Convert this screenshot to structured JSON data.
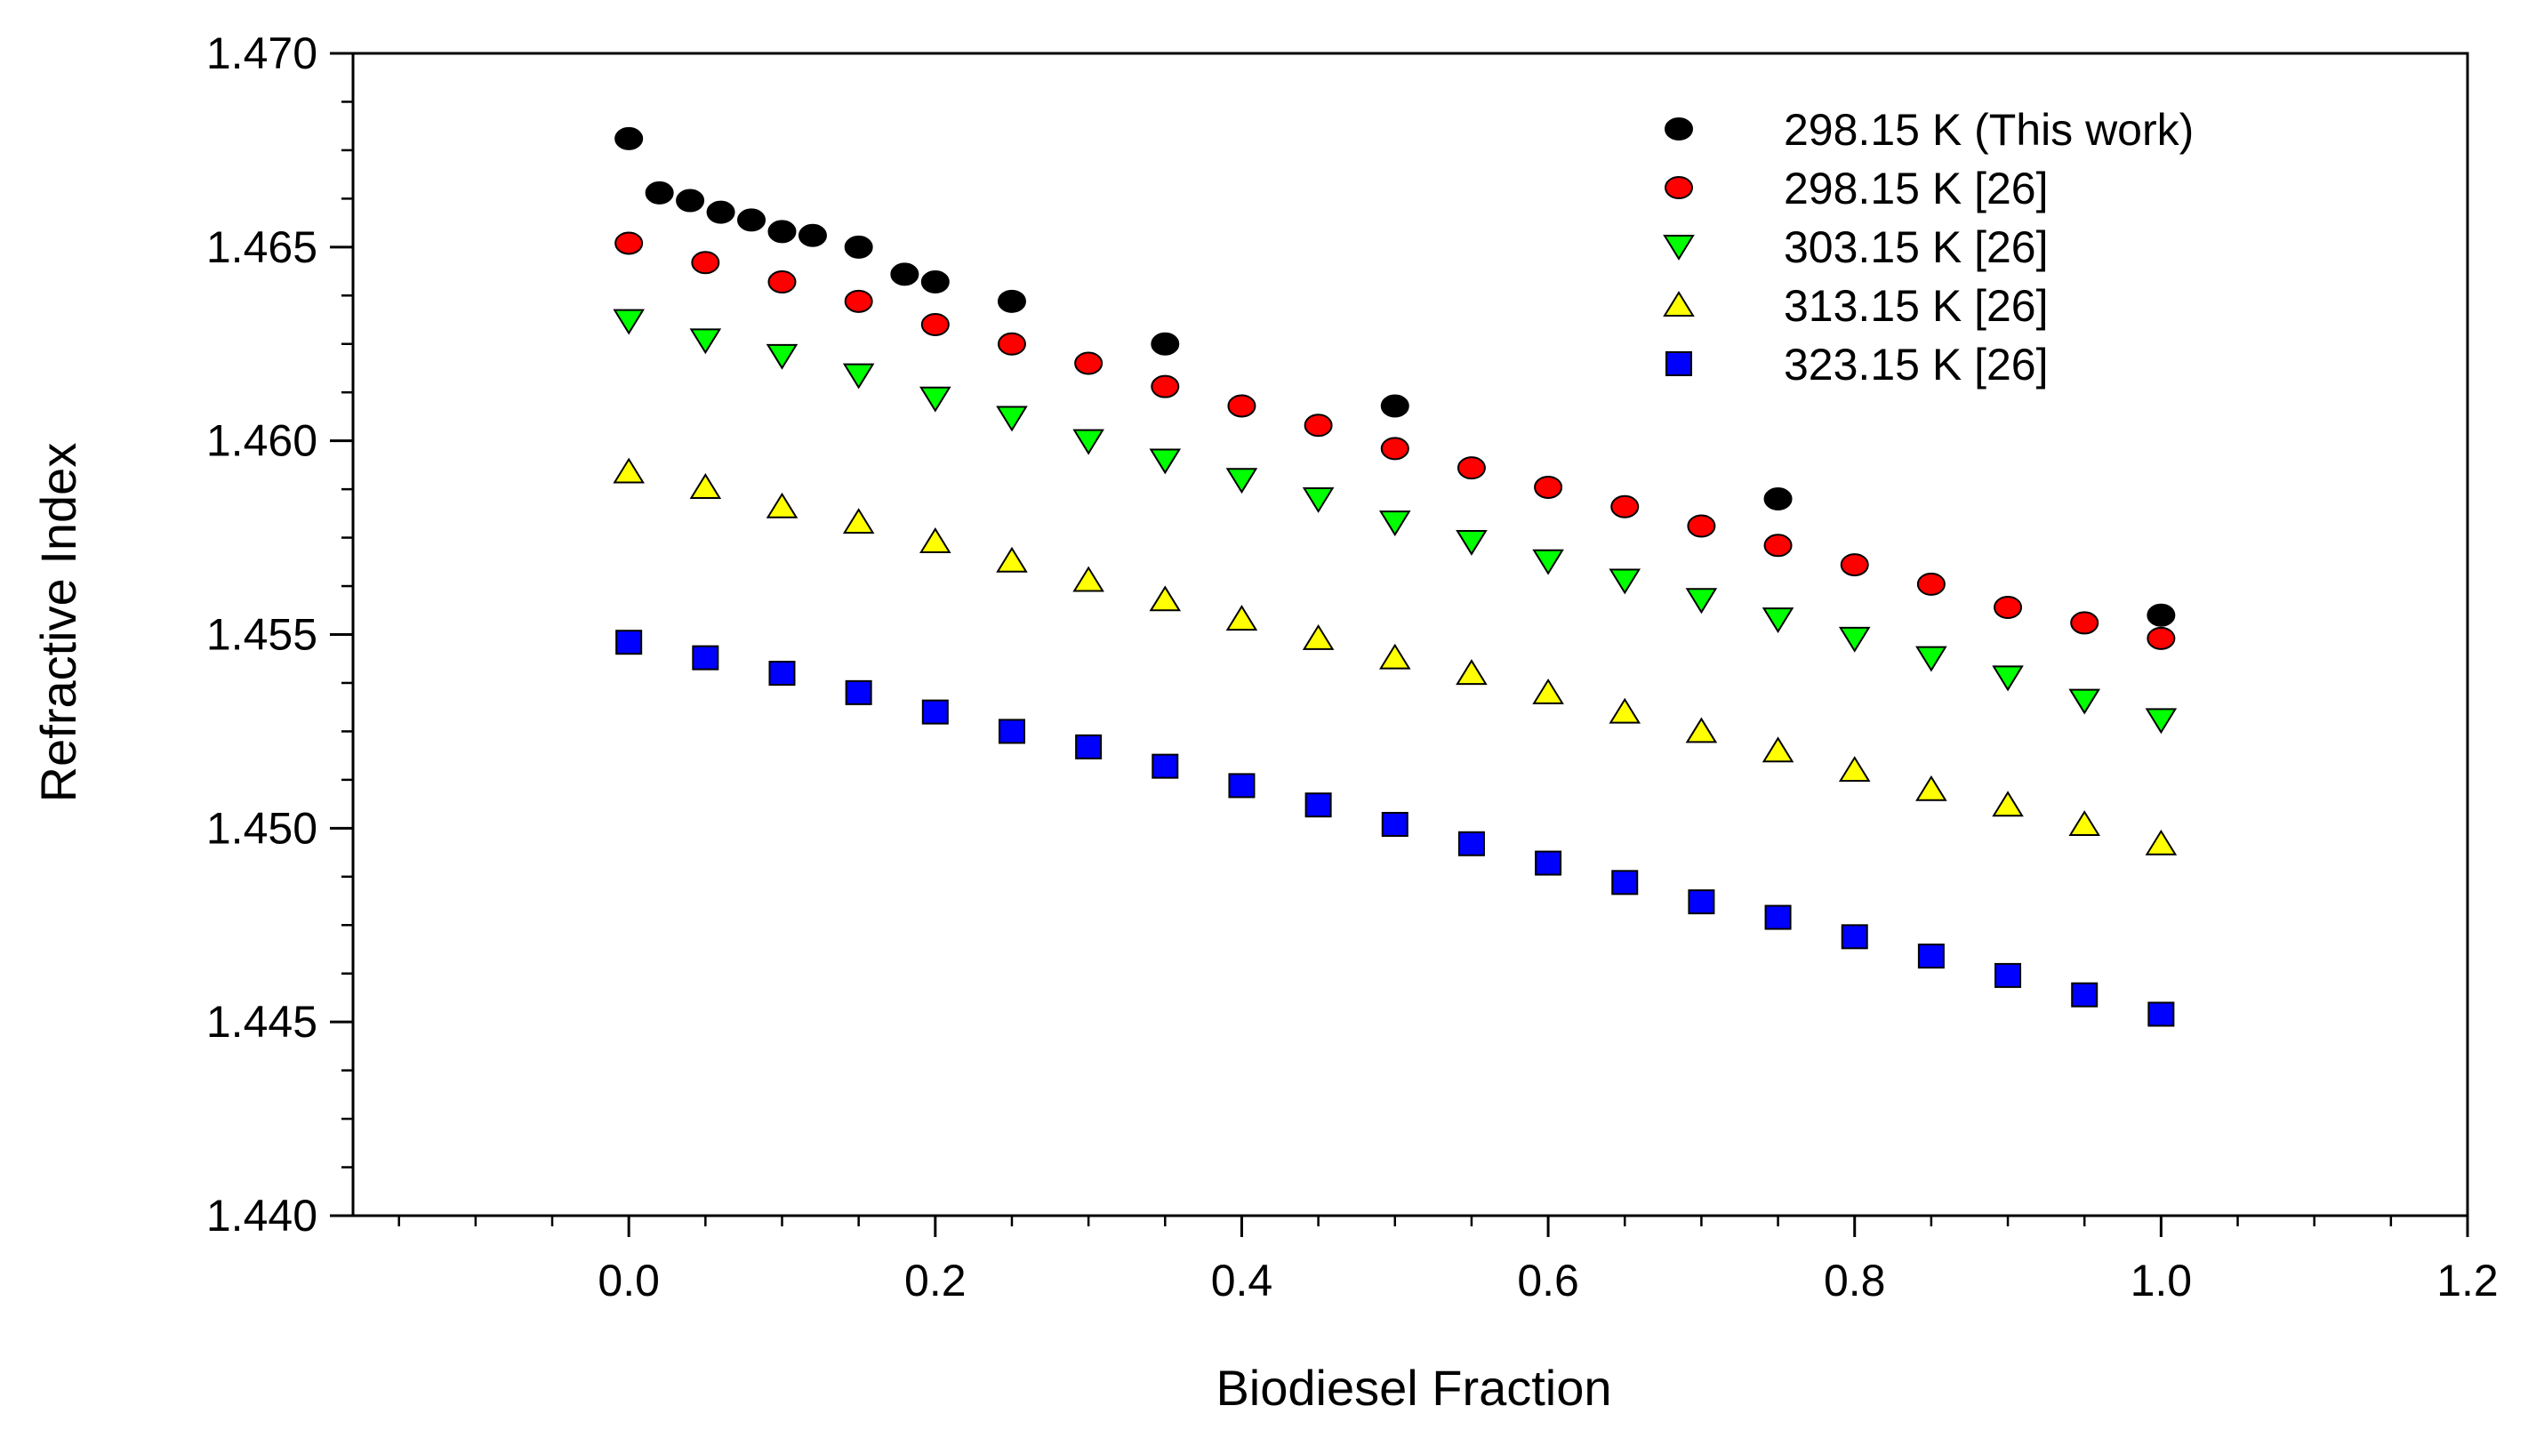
{
  "chart_data": {
    "type": "scatter",
    "title": "",
    "xlabel": "Biodiesel Fraction",
    "ylabel": "Refractive Index",
    "xlim": [
      -0.18,
      1.2
    ],
    "ylim": [
      1.44,
      1.47
    ],
    "xticks": [
      {
        "value": 0.0,
        "label": "0.0"
      },
      {
        "value": 0.2,
        "label": "0.2"
      },
      {
        "value": 0.4,
        "label": "0.4"
      },
      {
        "value": 0.6,
        "label": "0.6"
      },
      {
        "value": 0.8,
        "label": "0.8"
      },
      {
        "value": 1.0,
        "label": "1.0"
      },
      {
        "value": 1.2,
        "label": "1.2"
      }
    ],
    "yticks": [
      {
        "value": 1.44,
        "label": "1.440"
      },
      {
        "value": 1.445,
        "label": "1.445"
      },
      {
        "value": 1.45,
        "label": "1.450"
      },
      {
        "value": 1.455,
        "label": "1.455"
      },
      {
        "value": 1.46,
        "label": "1.460"
      },
      {
        "value": 1.465,
        "label": "1.465"
      },
      {
        "value": 1.47,
        "label": "1.470"
      }
    ],
    "grid": false,
    "legend_position": "top-right",
    "series": [
      {
        "name": "298.15 K (This work)",
        "marker": "circle",
        "color": "#000000",
        "points": [
          [
            0.0,
            1.4678
          ],
          [
            0.02,
            1.4664
          ],
          [
            0.04,
            1.4662
          ],
          [
            0.06,
            1.4659
          ],
          [
            0.08,
            1.4657
          ],
          [
            0.1,
            1.4654
          ],
          [
            0.12,
            1.4653
          ],
          [
            0.15,
            1.465
          ],
          [
            0.18,
            1.4643
          ],
          [
            0.2,
            1.4641
          ],
          [
            0.25,
            1.4636
          ],
          [
            0.35,
            1.4625
          ],
          [
            0.5,
            1.4609
          ],
          [
            0.75,
            1.4585
          ],
          [
            1.0,
            1.4555
          ]
        ]
      },
      {
        "name": "298.15 K [26]",
        "marker": "circle",
        "color": "#ff0000",
        "points": [
          [
            0.0,
            1.4651
          ],
          [
            0.05,
            1.4646
          ],
          [
            0.1,
            1.4641
          ],
          [
            0.15,
            1.4636
          ],
          [
            0.2,
            1.463
          ],
          [
            0.25,
            1.4625
          ],
          [
            0.3,
            1.462
          ],
          [
            0.35,
            1.4614
          ],
          [
            0.4,
            1.4609
          ],
          [
            0.45,
            1.4604
          ],
          [
            0.5,
            1.4598
          ],
          [
            0.55,
            1.4593
          ],
          [
            0.6,
            1.4588
          ],
          [
            0.65,
            1.4583
          ],
          [
            0.7,
            1.4578
          ],
          [
            0.75,
            1.4573
          ],
          [
            0.8,
            1.4568
          ],
          [
            0.85,
            1.4563
          ],
          [
            0.9,
            1.4557
          ],
          [
            0.95,
            1.4553
          ],
          [
            1.0,
            1.4549
          ]
        ]
      },
      {
        "name": "303.15 K [26]",
        "marker": "triangle-down",
        "color": "#00ff00",
        "points": [
          [
            0.0,
            1.4631
          ],
          [
            0.05,
            1.4626
          ],
          [
            0.1,
            1.4622
          ],
          [
            0.15,
            1.4617
          ],
          [
            0.2,
            1.4611
          ],
          [
            0.25,
            1.4606
          ],
          [
            0.3,
            1.46
          ],
          [
            0.35,
            1.4595
          ],
          [
            0.4,
            1.459
          ],
          [
            0.45,
            1.4585
          ],
          [
            0.5,
            1.4579
          ],
          [
            0.55,
            1.4574
          ],
          [
            0.6,
            1.4569
          ],
          [
            0.65,
            1.4564
          ],
          [
            0.7,
            1.4559
          ],
          [
            0.75,
            1.4554
          ],
          [
            0.8,
            1.4549
          ],
          [
            0.85,
            1.4544
          ],
          [
            0.9,
            1.4539
          ],
          [
            0.95,
            1.4533
          ],
          [
            1.0,
            1.4528
          ]
        ]
      },
      {
        "name": "313.15 K [26]",
        "marker": "triangle-up",
        "color": "#ffff00",
        "points": [
          [
            0.0,
            1.4592
          ],
          [
            0.05,
            1.4588
          ],
          [
            0.1,
            1.4583
          ],
          [
            0.15,
            1.4579
          ],
          [
            0.2,
            1.4574
          ],
          [
            0.25,
            1.4569
          ],
          [
            0.3,
            1.4564
          ],
          [
            0.35,
            1.4559
          ],
          [
            0.4,
            1.4554
          ],
          [
            0.45,
            1.4549
          ],
          [
            0.5,
            1.4544
          ],
          [
            0.55,
            1.454
          ],
          [
            0.6,
            1.4535
          ],
          [
            0.65,
            1.453
          ],
          [
            0.7,
            1.4525
          ],
          [
            0.75,
            1.452
          ],
          [
            0.8,
            1.4515
          ],
          [
            0.85,
            1.451
          ],
          [
            0.9,
            1.4506
          ],
          [
            0.95,
            1.4501
          ],
          [
            1.0,
            1.4496
          ]
        ]
      },
      {
        "name": "323.15 K [26]",
        "marker": "square",
        "color": "#0000ff",
        "points": [
          [
            0.0,
            1.4548
          ],
          [
            0.05,
            1.4544
          ],
          [
            0.1,
            1.454
          ],
          [
            0.15,
            1.4535
          ],
          [
            0.2,
            1.453
          ],
          [
            0.25,
            1.4525
          ],
          [
            0.3,
            1.4521
          ],
          [
            0.35,
            1.4516
          ],
          [
            0.4,
            1.4511
          ],
          [
            0.45,
            1.4506
          ],
          [
            0.5,
            1.4501
          ],
          [
            0.55,
            1.4496
          ],
          [
            0.6,
            1.4491
          ],
          [
            0.65,
            1.4486
          ],
          [
            0.7,
            1.4481
          ],
          [
            0.75,
            1.4477
          ],
          [
            0.8,
            1.4472
          ],
          [
            0.85,
            1.4467
          ],
          [
            0.9,
            1.4462
          ],
          [
            0.95,
            1.4457
          ],
          [
            1.0,
            1.4452
          ]
        ]
      }
    ]
  }
}
